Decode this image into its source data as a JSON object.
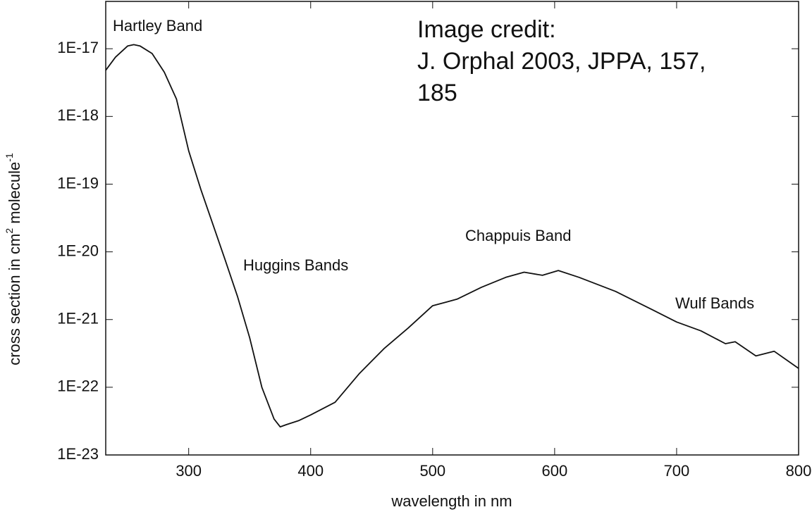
{
  "chart_data": {
    "type": "line",
    "title_lines": [
      "Image credit:",
      "J. Orphal 2003, JPPA, 157,",
      "185"
    ],
    "xlabel": "wavelength in nm",
    "ylabel": {
      "text": "cross section in cm",
      "sup1": "2",
      "mid": " molecule",
      "sup2": "-1"
    },
    "annotations": [
      "Hartley Band",
      "Huggins Bands",
      "Chappuis Band",
      "Wulf Bands"
    ],
    "log_y": true,
    "xlim": [
      232,
      800
    ],
    "ylim": [
      1e-23,
      5e-17
    ],
    "xticks": [
      300,
      400,
      500,
      600,
      700,
      800
    ],
    "yticks": [
      {
        "value": 1e-17,
        "label": "1E-17"
      },
      {
        "value": 1e-18,
        "label": "1E-18"
      },
      {
        "value": 1e-19,
        "label": "1E-19"
      },
      {
        "value": 1e-20,
        "label": "1E-20"
      },
      {
        "value": 1e-21,
        "label": "1E-21"
      },
      {
        "value": 1e-22,
        "label": "1E-22"
      },
      {
        "value": 1e-23,
        "label": "1E-23"
      }
    ],
    "color": "#111111",
    "x": [
      232,
      240,
      250,
      255,
      260,
      270,
      280,
      290,
      300,
      310,
      320,
      330,
      340,
      350,
      360,
      370,
      375,
      380,
      390,
      400,
      420,
      440,
      460,
      480,
      500,
      520,
      540,
      560,
      575,
      590,
      603,
      620,
      650,
      680,
      700,
      720,
      740,
      748,
      765,
      780,
      800
    ],
    "values": [
      4.8e-18,
      7.5e-18,
      1.1e-17,
      1.15e-17,
      1.1e-17,
      8.5e-18,
      4.5e-18,
      1.8e-18,
      3.1e-19,
      8.3e-20,
      2.5e-20,
      7.5e-21,
      2.2e-21,
      5.4e-22,
      1e-22,
      3.4e-23,
      2.6e-23,
      2.8e-23,
      3.2e-23,
      3.9e-23,
      6e-23,
      1.6e-22,
      3.7e-22,
      7.5e-22,
      1.6e-21,
      2e-21,
      3e-21,
      4.2e-21,
      5e-21,
      4.5e-21,
      5.3e-21,
      4.2e-21,
      2.6e-21,
      1.4e-21,
      9.2e-22,
      6.8e-22,
      4.4e-22,
      4.7e-22,
      2.9e-22,
      3.4e-22,
      1.9e-22
    ]
  }
}
